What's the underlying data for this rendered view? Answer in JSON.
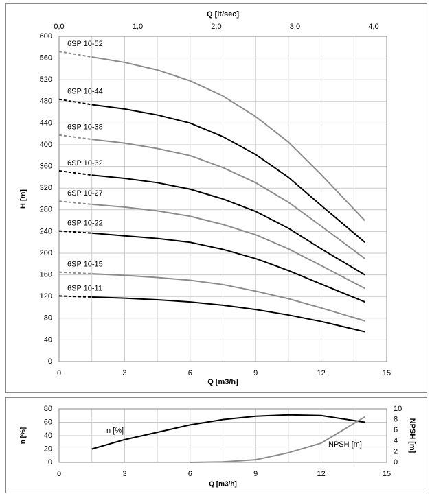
{
  "chart_data": [
    {
      "type": "line",
      "ylabel": "H [m]",
      "xlabel": "Q [m3/h]",
      "x2label": "Q [lt/sec]",
      "xlim": [
        0,
        15
      ],
      "xticks": [
        0,
        3,
        6,
        9,
        12,
        15
      ],
      "ylim": [
        0,
        600
      ],
      "yticks": [
        0,
        40,
        80,
        120,
        160,
        200,
        240,
        280,
        320,
        360,
        400,
        440,
        480,
        520,
        560,
        600
      ],
      "x2lim": [
        0,
        4.1667
      ],
      "x2ticks": [
        {
          "value": 0,
          "label": "0,0"
        },
        {
          "value": 1,
          "label": "1,0"
        },
        {
          "value": 2,
          "label": "2,0"
        },
        {
          "value": 3,
          "label": "3,0"
        },
        {
          "value": 4,
          "label": "4,0"
        }
      ],
      "grid": true,
      "dashed_start": true,
      "x": [
        0,
        1.5,
        3,
        4.5,
        6,
        7.5,
        9,
        10.5,
        12,
        14
      ],
      "series": [
        {
          "name": "6SP 10-52",
          "color": "#8c8c8c",
          "values": [
            572,
            562,
            552,
            538,
            518,
            490,
            452,
            405,
            345,
            260
          ]
        },
        {
          "name": "6SP 10-44",
          "color": "#000000",
          "values": [
            484,
            474,
            466,
            455,
            440,
            415,
            382,
            340,
            288,
            220
          ]
        },
        {
          "name": "6SP 10-38",
          "color": "#8c8c8c",
          "values": [
            418,
            410,
            403,
            393,
            380,
            358,
            330,
            294,
            250,
            190
          ]
        },
        {
          "name": "6SP 10-32",
          "color": "#000000",
          "values": [
            352,
            344,
            338,
            330,
            318,
            300,
            277,
            246,
            208,
            160
          ]
        },
        {
          "name": "6SP 10-27",
          "color": "#8c8c8c",
          "values": [
            296,
            290,
            285,
            278,
            268,
            253,
            234,
            208,
            177,
            135
          ]
        },
        {
          "name": "6SP 10-22",
          "color": "#000000",
          "values": [
            241,
            237,
            232,
            227,
            220,
            207,
            190,
            168,
            143,
            110
          ]
        },
        {
          "name": "6SP 10-15",
          "color": "#8c8c8c",
          "values": [
            165,
            162,
            159,
            155,
            150,
            142,
            130,
            116,
            99,
            75
          ]
        },
        {
          "name": "6SP 10-11",
          "color": "#000000",
          "values": [
            121,
            119,
            117,
            114,
            110,
            104,
            96,
            86,
            74,
            55
          ]
        }
      ]
    },
    {
      "type": "line",
      "ylabel": "n [%]",
      "y2label": "NPSH [m]",
      "xlabel": "Q [m3/h]",
      "xlim": [
        0,
        15
      ],
      "xticks": [
        0,
        3,
        6,
        9,
        12,
        15
      ],
      "ylim": [
        0,
        80
      ],
      "yticks": [
        0,
        20,
        40,
        60,
        80
      ],
      "y2lim": [
        0,
        10
      ],
      "y2ticks": [
        0,
        2,
        4,
        6,
        8,
        10
      ],
      "grid": true,
      "series": [
        {
          "name": "n [%]",
          "color": "#000000",
          "x": [
            1.5,
            3,
            4.5,
            6,
            7.5,
            9,
            10.5,
            12,
            14
          ],
          "values": [
            20,
            34,
            45,
            56,
            64,
            69,
            71,
            70,
            60
          ]
        },
        {
          "name": "NPSH [m]",
          "color": "#8c8c8c",
          "axis": "y2",
          "x": [
            6,
            7.5,
            9,
            10.5,
            12,
            14
          ],
          "values": [
            0,
            0.1,
            0.5,
            1.8,
            3.6,
            8.5
          ]
        }
      ]
    }
  ]
}
